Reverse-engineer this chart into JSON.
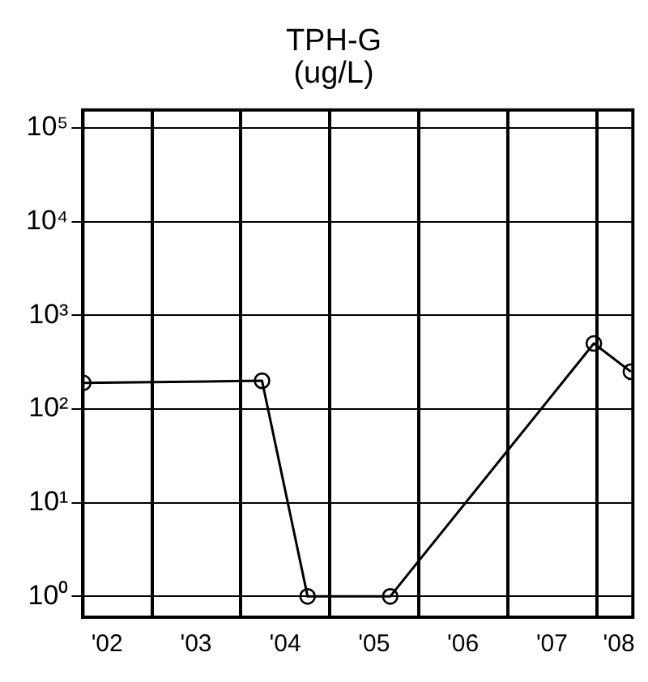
{
  "chart_data": {
    "type": "line",
    "title": "TPH-G",
    "subtitle": "(ug/L)",
    "x": [
      "2002-03-25",
      "2004-03-28",
      "2004-10-01",
      "2005-09-05",
      "2007-12-20",
      "2008-05-20"
    ],
    "values": [
      190,
      200,
      1,
      1,
      500,
      250
    ],
    "color": "#000000",
    "marker": "circle",
    "line_style": "solid",
    "log": "y",
    "grid": true,
    "legend": false,
    "xlim": [
      "2002-03-24",
      "2008-05-28"
    ],
    "xticks": [
      {
        "value": "2002-07-01",
        "label": "'02"
      },
      {
        "value": "2003-01-01",
        "label": null
      },
      {
        "value": "2003-07-01",
        "label": "'03"
      },
      {
        "value": "2004-01-01",
        "label": null
      },
      {
        "value": "2004-07-01",
        "label": "'04"
      },
      {
        "value": "2005-01-01",
        "label": null
      },
      {
        "value": "2005-07-01",
        "label": "'05"
      },
      {
        "value": "2006-01-01",
        "label": null
      },
      {
        "value": "2006-07-01",
        "label": "'06"
      },
      {
        "value": "2007-01-01",
        "label": null
      },
      {
        "value": "2007-07-01",
        "label": "'07"
      },
      {
        "value": "2008-01-01",
        "label": null
      },
      {
        "value": "2008-04-01",
        "label": "'08"
      }
    ],
    "ylim": [
      0.64,
      155000
    ],
    "yticks": [
      {
        "value": 1,
        "label": "10⁰"
      },
      {
        "value": 10,
        "label": "10¹"
      },
      {
        "value": 100,
        "label": "10²"
      },
      {
        "value": 1000,
        "label": "10³"
      },
      {
        "value": 10000,
        "label": "10⁴"
      },
      {
        "value": 100000,
        "label": "10⁵"
      }
    ]
  }
}
